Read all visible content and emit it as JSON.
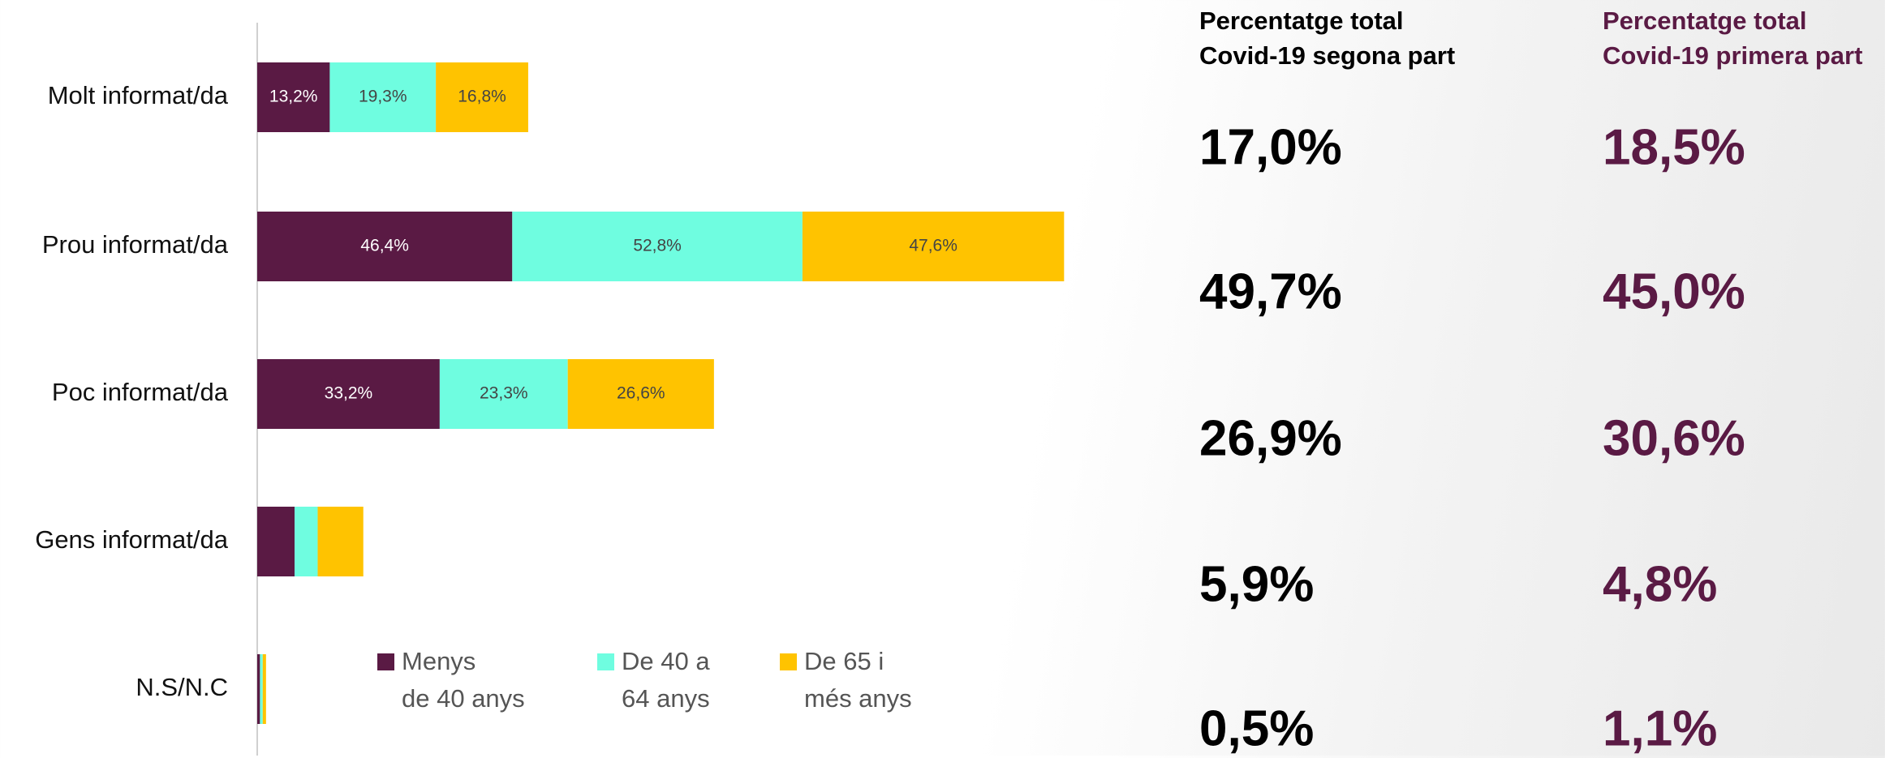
{
  "chart_data": {
    "type": "bar",
    "orientation": "horizontal",
    "stacked": true,
    "categories": [
      "Molt informat/da",
      "Prou informat/da",
      "Poc informat/da",
      "Gens informat/da",
      "N.S/N.C"
    ],
    "series": [
      {
        "name": "Menys\nde 40 anys",
        "color": "#5a1a44",
        "label_color": "#ffffff",
        "values": [
          13.2,
          46.4,
          33.2,
          6.8,
          0.5
        ],
        "value_labels": [
          "13,2%",
          "46,4%",
          "33,2%",
          null,
          null
        ]
      },
      {
        "name": "De 40 a\n64 anys",
        "color": "#6ffde0",
        "label_color": "#444444",
        "values": [
          19.3,
          52.8,
          23.3,
          4.2,
          0.5
        ],
        "value_labels": [
          "19,3%",
          "52,8%",
          "23,3%",
          null,
          null
        ]
      },
      {
        "name": "De 65 i\nmés anys",
        "color": "#ffc300",
        "label_color": "#444444",
        "values": [
          16.8,
          47.6,
          26.6,
          8.3,
          0.6
        ],
        "value_labels": [
          "16,8%",
          "47,6%",
          "26,6%",
          null,
          null
        ]
      }
    ],
    "xlim": [
      0,
      150
    ]
  },
  "summary": {
    "columns": [
      {
        "heading": [
          "Percentatge total",
          "Covid-19 segona part"
        ],
        "color": "#000000",
        "values": [
          "17,0%",
          "49,7%",
          "26,9%",
          "5,9%",
          "0,5%"
        ]
      },
      {
        "heading": [
          "Percentatge total",
          "Covid-19 primera part"
        ],
        "color": "#5a1a44",
        "values": [
          "18,5%",
          "45,0%",
          "30,6%",
          "4,8%",
          "1,1%"
        ]
      }
    ]
  }
}
